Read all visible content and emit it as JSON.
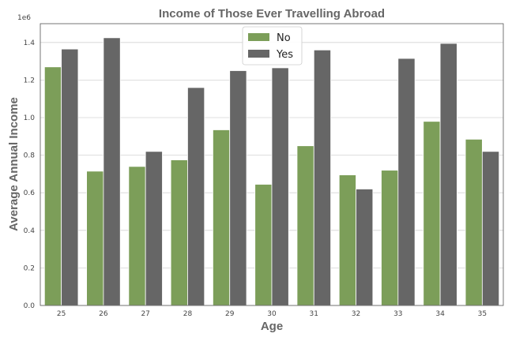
{
  "chart_data": {
    "type": "bar",
    "title": "Income of Those Ever Travelling Abroad",
    "xlabel": "Age",
    "ylabel": "Average Annual Income",
    "offset_text": "1e6",
    "categories": [
      "25",
      "26",
      "27",
      "28",
      "29",
      "30",
      "31",
      "32",
      "33",
      "34",
      "35"
    ],
    "series": [
      {
        "name": "No",
        "color": "#7c9e59",
        "values": [
          1270000,
          715000,
          740000,
          775000,
          935000,
          645000,
          850000,
          695000,
          720000,
          980000,
          885000
        ]
      },
      {
        "name": "Yes",
        "color": "#666666",
        "values": [
          1365000,
          1425000,
          820000,
          1160000,
          1250000,
          1265000,
          1360000,
          620000,
          1315000,
          1395000,
          820000
        ]
      }
    ],
    "ylim": [
      0,
      1500000
    ],
    "yticks": [
      0,
      200000,
      400000,
      600000,
      800000,
      1000000,
      1200000,
      1400000
    ],
    "ytick_labels": [
      "0.0",
      "0.2",
      "0.4",
      "0.6",
      "0.8",
      "1.0",
      "1.2",
      "1.4"
    ],
    "grid": true,
    "legend_position": "top-center"
  }
}
